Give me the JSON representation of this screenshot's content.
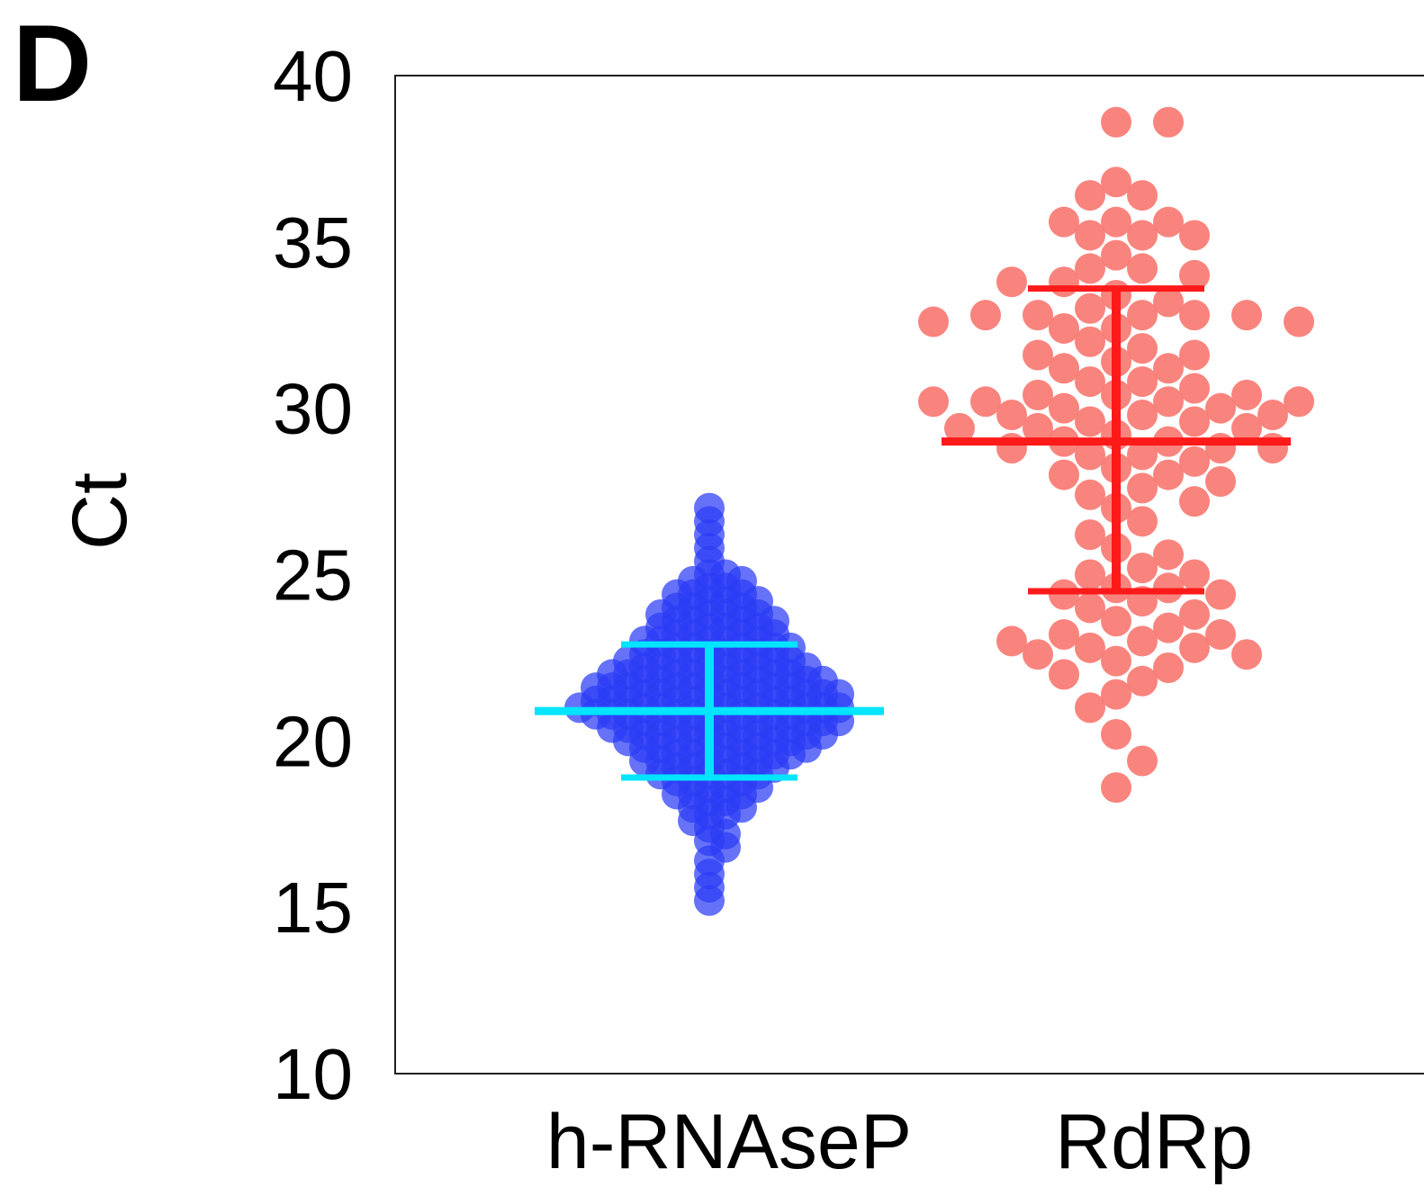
{
  "panel_label": "D",
  "chart_data": {
    "type": "scatter",
    "title": "",
    "xlabel": "",
    "ylabel": "Ct",
    "ylim": [
      10,
      40
    ],
    "yticks": [
      10,
      15,
      20,
      25,
      30,
      35,
      40
    ],
    "categories": [
      "h-RNAseP",
      "RdRp"
    ],
    "grid": false,
    "legend": "none",
    "series": [
      {
        "category": "h-RNAseP",
        "color": "#2b3cf5",
        "mean": 20.9,
        "sd_low": 18.9,
        "sd_high": 22.9,
        "summary_color": "#00e5ff",
        "values": [
          27.0,
          26.6,
          26.2,
          25.8,
          25.4,
          25.0,
          25.0,
          24.8,
          24.8,
          24.6,
          24.6,
          24.4,
          24.4,
          24.4,
          24.2,
          24.2,
          24.2,
          24.0,
          24.0,
          24.0,
          23.8,
          23.8,
          23.8,
          23.8,
          23.6,
          23.6,
          23.6,
          23.6,
          23.4,
          23.4,
          23.4,
          23.4,
          23.2,
          23.2,
          23.2,
          23.2,
          23.0,
          23.0,
          23.0,
          23.0,
          23.0,
          22.8,
          22.8,
          22.8,
          22.8,
          22.8,
          22.6,
          22.6,
          22.6,
          22.6,
          22.6,
          22.4,
          22.4,
          22.4,
          22.4,
          22.4,
          22.4,
          22.2,
          22.2,
          22.2,
          22.2,
          22.2,
          22.2,
          22.0,
          22.0,
          22.0,
          22.0,
          22.0,
          22.0,
          22.0,
          21.8,
          21.8,
          21.8,
          21.8,
          21.8,
          21.8,
          21.8,
          21.6,
          21.6,
          21.6,
          21.6,
          21.6,
          21.6,
          21.6,
          21.6,
          21.4,
          21.4,
          21.4,
          21.4,
          21.4,
          21.4,
          21.4,
          21.4,
          21.2,
          21.2,
          21.2,
          21.2,
          21.2,
          21.2,
          21.2,
          21.2,
          21.0,
          21.0,
          21.0,
          21.0,
          21.0,
          21.0,
          21.0,
          21.0,
          21.0,
          20.8,
          20.8,
          20.8,
          20.8,
          20.8,
          20.8,
          20.8,
          20.8,
          20.6,
          20.6,
          20.6,
          20.6,
          20.6,
          20.6,
          20.6,
          20.6,
          20.4,
          20.4,
          20.4,
          20.4,
          20.4,
          20.4,
          20.4,
          20.2,
          20.2,
          20.2,
          20.2,
          20.2,
          20.2,
          20.2,
          20.0,
          20.0,
          20.0,
          20.0,
          20.0,
          20.0,
          19.8,
          19.8,
          19.8,
          19.8,
          19.8,
          19.8,
          19.6,
          19.6,
          19.6,
          19.6,
          19.6,
          19.4,
          19.4,
          19.4,
          19.4,
          19.4,
          19.2,
          19.2,
          19.2,
          19.2,
          19.0,
          19.0,
          19.0,
          19.0,
          18.8,
          18.8,
          18.8,
          18.6,
          18.6,
          18.6,
          18.4,
          18.4,
          18.4,
          18.2,
          18.2,
          18.0,
          18.0,
          17.8,
          17.8,
          17.6,
          17.4,
          17.2,
          17.0,
          16.8,
          16.4,
          16.0,
          15.6,
          15.2
        ]
      },
      {
        "category": "RdRp",
        "color": "#f87a72",
        "mean": 29.0,
        "sd_low": 24.5,
        "sd_high": 33.6,
        "summary_color": "#ff1a1a",
        "values": [
          38.6,
          38.6,
          36.8,
          36.4,
          36.4,
          35.6,
          35.6,
          35.6,
          35.2,
          35.2,
          35.2,
          34.6,
          34.2,
          34.2,
          34.0,
          33.8,
          33.8,
          33.4,
          33.2,
          33.0,
          32.8,
          32.8,
          32.8,
          32.8,
          32.8,
          32.6,
          32.6,
          32.4,
          32.4,
          32.0,
          31.8,
          31.6,
          31.6,
          31.4,
          31.2,
          31.2,
          30.8,
          30.8,
          30.6,
          30.4,
          30.4,
          30.4,
          30.2,
          30.2,
          30.2,
          30.2,
          30.0,
          30.0,
          29.8,
          29.8,
          29.8,
          29.6,
          29.6,
          29.4,
          29.4,
          29.4,
          29.2,
          29.0,
          29.0,
          28.8,
          28.8,
          28.8,
          28.6,
          28.6,
          28.4,
          28.2,
          28.0,
          28.0,
          27.8,
          27.6,
          27.4,
          27.2,
          27.0,
          26.6,
          26.2,
          25.8,
          25.6,
          25.2,
          25.0,
          25.0,
          24.6,
          24.6,
          24.4,
          24.4,
          24.2,
          24.0,
          23.8,
          23.6,
          23.4,
          23.2,
          23.2,
          23.0,
          23.0,
          22.8,
          22.8,
          22.6,
          22.6,
          22.4,
          22.2,
          22.0,
          21.8,
          21.4,
          21.0,
          20.2,
          19.4,
          18.6
        ]
      }
    ]
  }
}
